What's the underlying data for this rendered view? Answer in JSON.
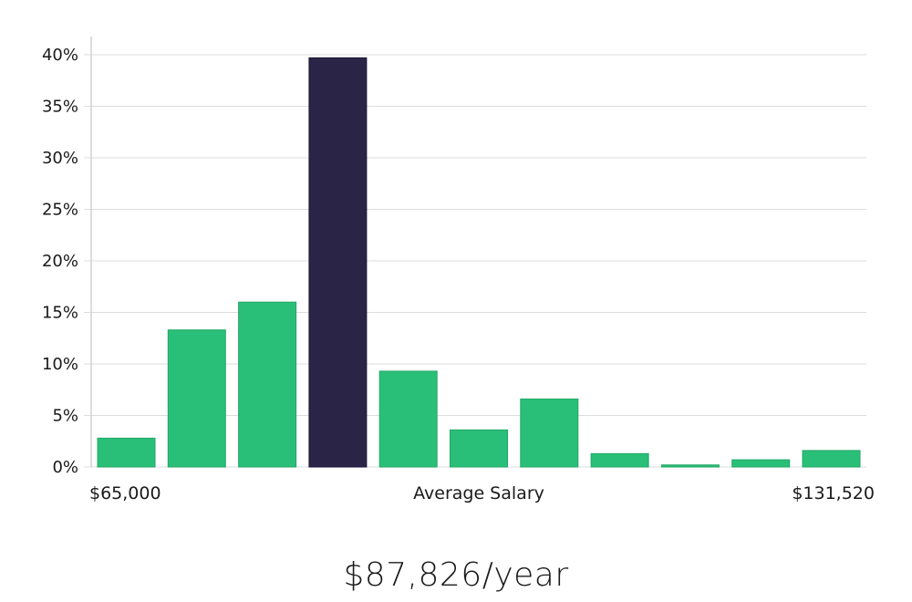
{
  "chart_data": {
    "type": "bar",
    "title": "",
    "xlabel": "Average Salary",
    "ylabel": "",
    "x_range_labels": {
      "min": "$65,000",
      "max": "$131,520"
    },
    "values": [
      2.8,
      13.3,
      16.0,
      39.7,
      9.3,
      3.6,
      6.6,
      1.3,
      0.2,
      0.7,
      1.6
    ],
    "highlight_index": 3,
    "ylim": [
      0,
      40
    ],
    "yticks": [
      0,
      5,
      10,
      15,
      20,
      25,
      30,
      35,
      40
    ],
    "ytick_labels": [
      "0%",
      "5%",
      "10%",
      "15%",
      "20%",
      "25%",
      "30%",
      "35%",
      "40%"
    ],
    "grid": true,
    "colors": {
      "bar": "#2abf78",
      "highlight": "#2a2546",
      "grid": "#dcdcdc"
    }
  },
  "caption": "$87,826/year"
}
